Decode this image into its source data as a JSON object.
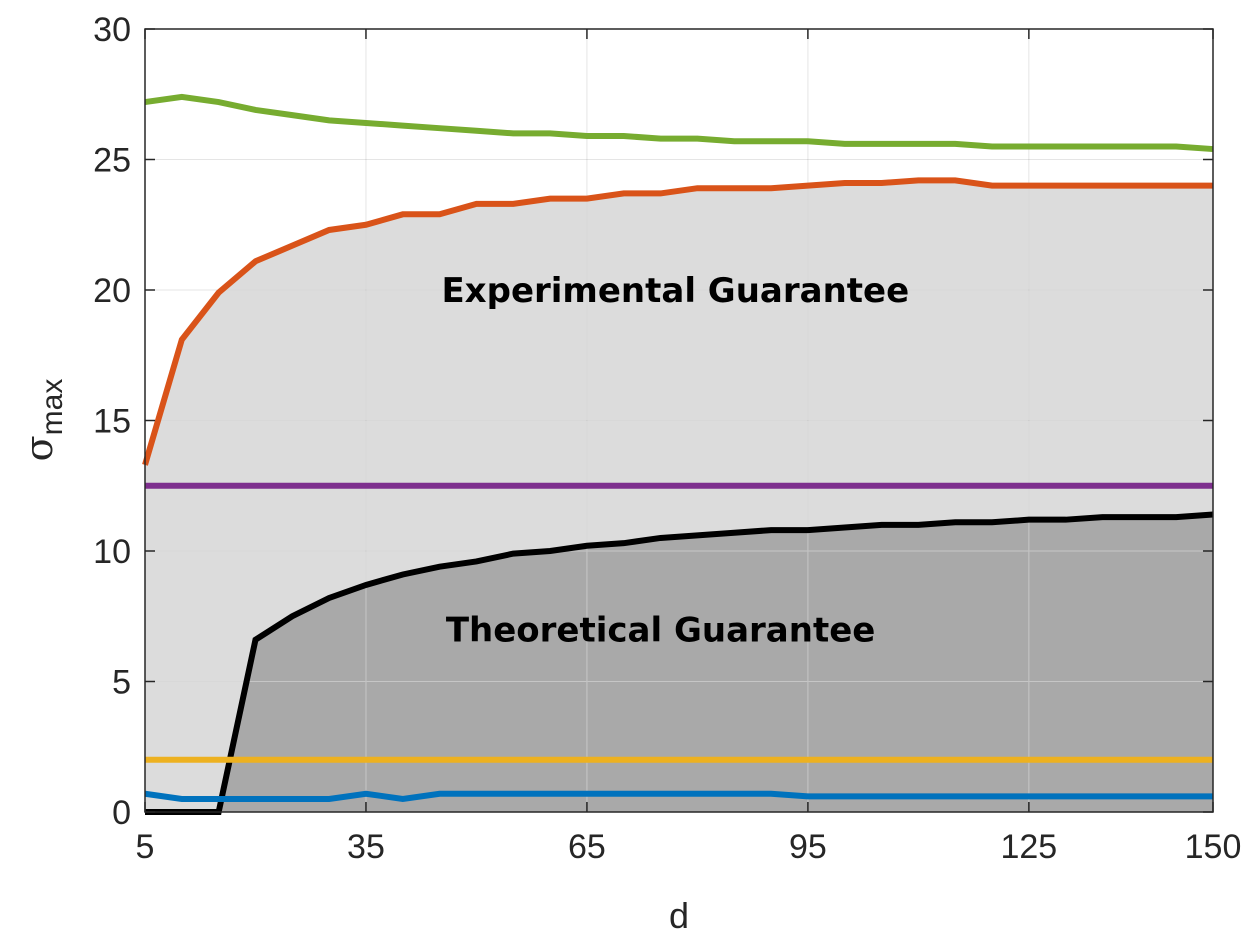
{
  "chart_data": {
    "type": "line",
    "xlabel": "d",
    "ylabel": {
      "symbol": "σ",
      "subscript": "max"
    },
    "xlim": [
      5,
      150
    ],
    "ylim": [
      0,
      30
    ],
    "xticks": [
      5,
      35,
      65,
      95,
      125,
      150
    ],
    "yticks": [
      0,
      5,
      10,
      15,
      20,
      25,
      30
    ],
    "grid": true,
    "x": [
      5,
      10,
      15,
      20,
      25,
      30,
      35,
      40,
      45,
      50,
      55,
      60,
      65,
      70,
      75,
      80,
      85,
      90,
      95,
      100,
      105,
      110,
      115,
      120,
      125,
      130,
      135,
      140,
      145,
      150
    ],
    "series": [
      {
        "color": "#77AC30",
        "values": [
          27.2,
          27.4,
          27.2,
          26.9,
          26.7,
          26.5,
          26.4,
          26.3,
          26.2,
          26.1,
          26.0,
          26.0,
          25.9,
          25.9,
          25.8,
          25.8,
          25.7,
          25.7,
          25.7,
          25.6,
          25.6,
          25.6,
          25.6,
          25.5,
          25.5,
          25.5,
          25.5,
          25.5,
          25.5,
          25.4
        ]
      },
      {
        "color": "#D95319",
        "values": [
          13.3,
          18.1,
          19.9,
          21.1,
          21.7,
          22.3,
          22.5,
          22.9,
          22.9,
          23.3,
          23.3,
          23.5,
          23.5,
          23.7,
          23.7,
          23.9,
          23.9,
          23.9,
          24.0,
          24.1,
          24.1,
          24.2,
          24.2,
          24.0,
          24.0,
          24.0,
          24.0,
          24.0,
          24.0,
          24.0
        ]
      },
      {
        "color": "#7E2F8E",
        "values": [
          12.5,
          12.5,
          12.5,
          12.5,
          12.5,
          12.5,
          12.5,
          12.5,
          12.5,
          12.5,
          12.5,
          12.5,
          12.5,
          12.5,
          12.5,
          12.5,
          12.5,
          12.5,
          12.5,
          12.5,
          12.5,
          12.5,
          12.5,
          12.5,
          12.5,
          12.5,
          12.5,
          12.5,
          12.5,
          12.5
        ]
      },
      {
        "color": "#000000",
        "values": [
          0,
          0,
          0,
          6.6,
          7.5,
          8.2,
          8.7,
          9.1,
          9.4,
          9.6,
          9.9,
          10.0,
          10.2,
          10.3,
          10.5,
          10.6,
          10.7,
          10.8,
          10.8,
          10.9,
          11.0,
          11.0,
          11.1,
          11.1,
          11.2,
          11.2,
          11.3,
          11.3,
          11.3,
          11.4
        ]
      },
      {
        "color": "#EDB120",
        "values": [
          2,
          2,
          2,
          2,
          2,
          2,
          2,
          2,
          2,
          2,
          2,
          2,
          2,
          2,
          2,
          2,
          2,
          2,
          2,
          2,
          2,
          2,
          2,
          2,
          2,
          2,
          2,
          2,
          2,
          2
        ]
      },
      {
        "color": "#0072BD",
        "values": [
          0.7,
          0.5,
          0.5,
          0.5,
          0.5,
          0.5,
          0.7,
          0.5,
          0.7,
          0.7,
          0.7,
          0.7,
          0.7,
          0.7,
          0.7,
          0.7,
          0.7,
          0.7,
          0.6,
          0.6,
          0.6,
          0.6,
          0.6,
          0.6,
          0.6,
          0.6,
          0.6,
          0.6,
          0.6,
          0.6
        ]
      }
    ],
    "regions": [
      {
        "name": "Experimental Guarantee",
        "color": "#DCDCDC"
      },
      {
        "name": "Theoretical Guarantee",
        "color": "#A9A9A9"
      }
    ],
    "annotations": [
      {
        "text": "Experimental Guarantee",
        "x": 77,
        "y": 20
      },
      {
        "text": "Theoretical Guarantee",
        "x": 75,
        "y": 7
      }
    ]
  }
}
